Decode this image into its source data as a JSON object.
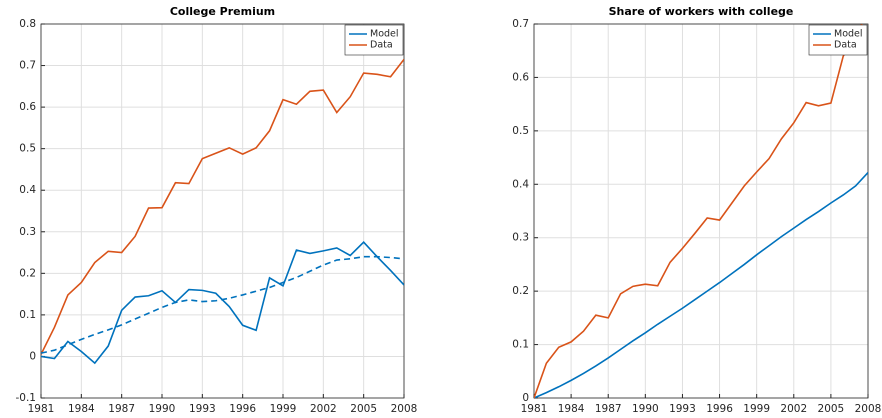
{
  "chart_data": [
    {
      "type": "line",
      "title": "College Premium",
      "x": [
        1981,
        1982,
        1983,
        1984,
        1985,
        1986,
        1987,
        1988,
        1989,
        1990,
        1991,
        1992,
        1993,
        1994,
        1995,
        1996,
        1997,
        1998,
        1999,
        2000,
        2001,
        2002,
        2003,
        2004,
        2005,
        2006,
        2007,
        2008
      ],
      "series": [
        {
          "name": "Model",
          "color": "#0072bd",
          "values": [
            0.0,
            -0.005,
            0.036,
            0.012,
            -0.016,
            0.025,
            0.111,
            0.143,
            0.146,
            0.158,
            0.13,
            0.161,
            0.159,
            0.152,
            0.12,
            0.075,
            0.063,
            0.189,
            0.17,
            0.256,
            0.248,
            0.254,
            0.261,
            0.243,
            0.275,
            0.24,
            0.207,
            0.172
          ]
        },
        {
          "name": "Data",
          "color": "#d95319",
          "values": [
            0.005,
            0.07,
            0.148,
            0.178,
            0.226,
            0.253,
            0.25,
            0.289,
            0.357,
            0.358,
            0.418,
            0.416,
            0.476,
            0.489,
            0.502,
            0.487,
            0.502,
            0.543,
            0.618,
            0.607,
            0.638,
            0.641,
            0.587,
            0.625,
            0.682,
            0.679,
            0.673,
            0.715
          ]
        },
        {
          "color": "#0072bd",
          "dash": true,
          "values": [
            0.008,
            0.015,
            0.028,
            0.041,
            0.053,
            0.064,
            0.076,
            0.09,
            0.104,
            0.118,
            0.13,
            0.136,
            0.132,
            0.134,
            0.14,
            0.148,
            0.157,
            0.166,
            0.178,
            0.19,
            0.205,
            0.22,
            0.232,
            0.235,
            0.24,
            0.24,
            0.238,
            0.235
          ]
        }
      ],
      "xlim": [
        1981,
        2008
      ],
      "xticks": [
        1981,
        1984,
        1987,
        1990,
        1993,
        1996,
        1999,
        2002,
        2005,
        2008
      ],
      "ylim": [
        -0.1,
        0.8
      ],
      "yticks": [
        -0.1,
        0,
        0.1,
        0.2,
        0.3,
        0.4,
        0.5,
        0.6,
        0.7,
        0.8
      ],
      "grid": true,
      "legend": "upper-right"
    },
    {
      "type": "line",
      "title": "Share of workers with college",
      "x": [
        1981,
        1982,
        1983,
        1984,
        1985,
        1986,
        1987,
        1988,
        1989,
        1990,
        1991,
        1992,
        1993,
        1994,
        1995,
        1996,
        1997,
        1998,
        1999,
        2000,
        2001,
        2002,
        2003,
        2004,
        2005,
        2006,
        2007,
        2008
      ],
      "series": [
        {
          "name": "Model",
          "color": "#0072bd",
          "values": [
            0.0,
            0.01,
            0.021,
            0.033,
            0.046,
            0.06,
            0.075,
            0.091,
            0.107,
            0.122,
            0.138,
            0.153,
            0.168,
            0.184,
            0.2,
            0.216,
            0.233,
            0.25,
            0.268,
            0.285,
            0.302,
            0.318,
            0.334,
            0.349,
            0.365,
            0.38,
            0.397,
            0.422
          ]
        },
        {
          "name": "Data",
          "color": "#d95319",
          "values": [
            0.0,
            0.065,
            0.095,
            0.105,
            0.125,
            0.155,
            0.15,
            0.195,
            0.209,
            0.213,
            0.21,
            0.254,
            0.28,
            0.308,
            0.337,
            0.333,
            0.365,
            0.397,
            0.423,
            0.448,
            0.485,
            0.515,
            0.553,
            0.547,
            0.552,
            0.64,
            0.68,
            0.72
          ]
        }
      ],
      "xlim": [
        1981,
        2008
      ],
      "xticks": [
        1981,
        1984,
        1987,
        1990,
        1993,
        1996,
        1999,
        2002,
        2005,
        2008
      ],
      "ylim": [
        0,
        0.7
      ],
      "yticks": [
        0,
        0.1,
        0.2,
        0.3,
        0.4,
        0.5,
        0.6,
        0.7
      ],
      "grid": true,
      "legend": "upper-right"
    }
  ]
}
